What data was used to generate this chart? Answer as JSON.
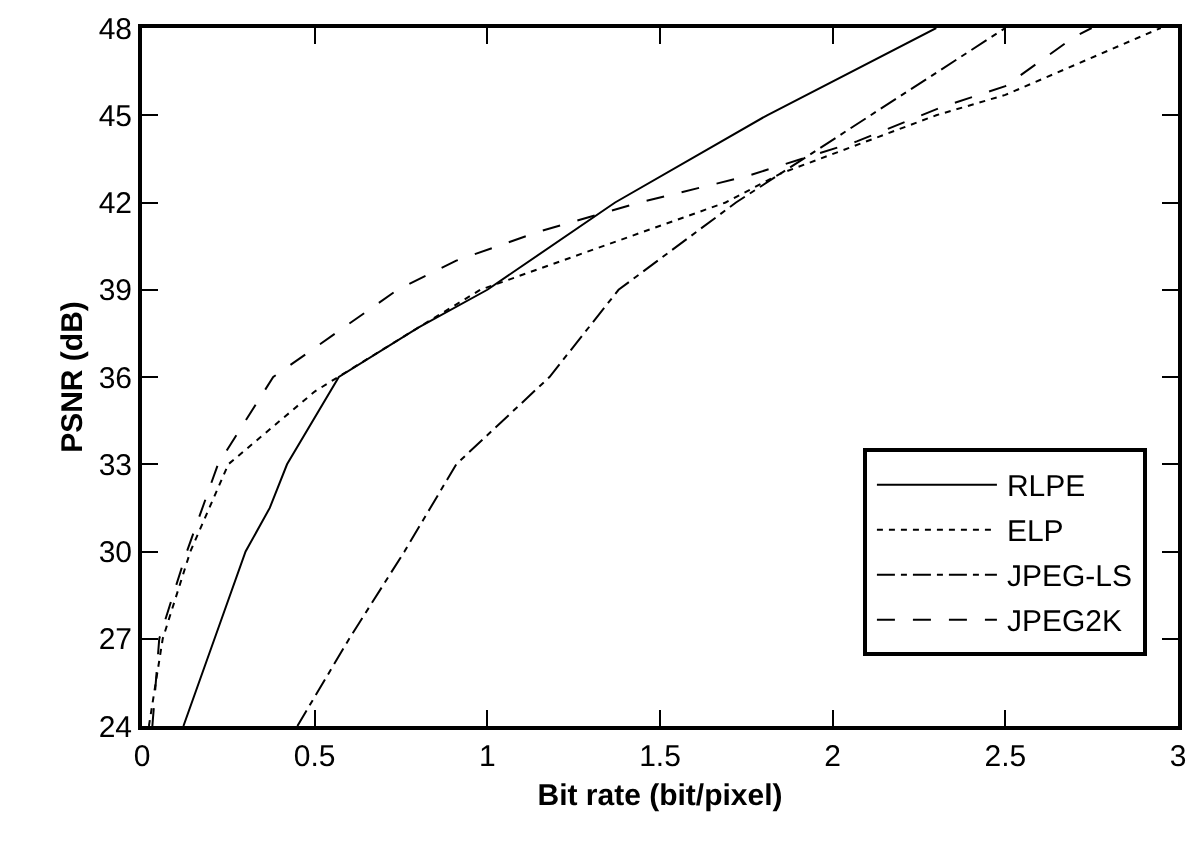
{
  "chart_data": {
    "type": "line",
    "xlabel": "Bit rate (bit/pixel)",
    "ylabel": "PSNR (dB)",
    "xlim": [
      0,
      3
    ],
    "xticks": [
      0,
      0.5,
      1,
      1.5,
      2,
      2.5,
      3
    ],
    "ylim": [
      24,
      48
    ],
    "yticks": [
      24,
      27,
      30,
      33,
      36,
      39,
      42,
      45,
      48
    ],
    "legend": "bottom right",
    "marker": "none",
    "series": [
      {
        "name": "RLPE",
        "color": "#000000",
        "line_style": "solid",
        "x": [
          0.12,
          0.21,
          0.3,
          0.37,
          0.42,
          0.57,
          0.8,
          1.0,
          1.37,
          1.81,
          2.3
        ],
        "values": [
          24,
          27,
          30,
          31.5,
          33,
          36,
          37.7,
          39,
          42,
          45,
          48
        ]
      },
      {
        "name": "ELP",
        "color": "#000000",
        "line_style": "dotted",
        "x": [
          0.02,
          0.06,
          0.14,
          0.25,
          0.5,
          0.8,
          0.98,
          1.69,
          1.85,
          2.3,
          2.5,
          2.95
        ],
        "values": [
          24,
          27,
          30,
          33,
          35.5,
          37.7,
          39,
          42,
          43,
          45,
          45.7,
          48
        ]
      },
      {
        "name": "JPEG-LS",
        "color": "#000000",
        "line_style": "dashdot",
        "x": [
          0.45,
          0.6,
          0.76,
          0.91,
          1.18,
          1.38,
          1.72,
          1.85,
          2.11,
          2.5
        ],
        "values": [
          24,
          27,
          30,
          33,
          36,
          39,
          42,
          43,
          45,
          48
        ]
      },
      {
        "name": "JPEG2K",
        "color": "#000000",
        "line_style": "dashed",
        "x": [
          0.03,
          0.05,
          0.13,
          0.22,
          0.38,
          0.74,
          0.91,
          1.15,
          1.44,
          1.75,
          2.07,
          2.32,
          2.5,
          2.7,
          2.75
        ],
        "values": [
          24,
          27,
          30,
          33,
          36,
          39,
          40,
          41,
          42,
          42.9,
          44.1,
          45.3,
          46,
          47.7,
          48
        ]
      }
    ]
  }
}
